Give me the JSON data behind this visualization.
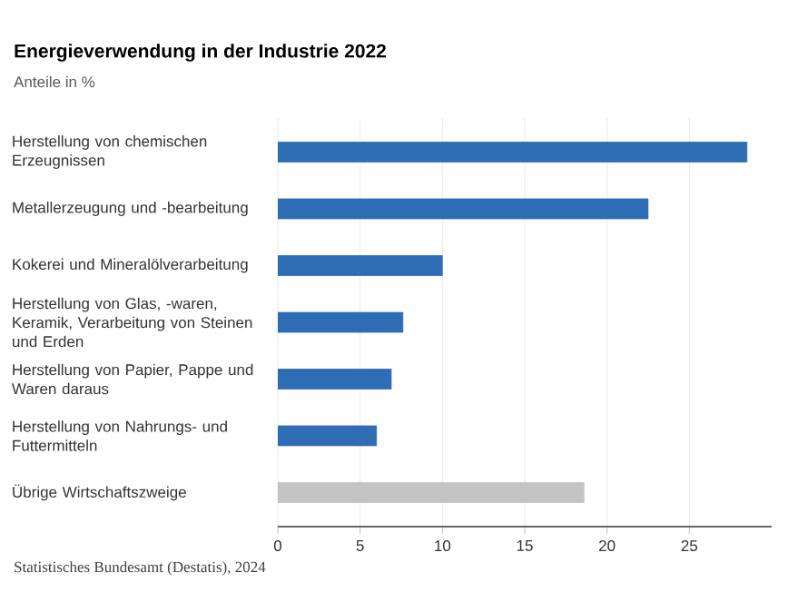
{
  "chart_data": {
    "type": "bar",
    "orientation": "horizontal",
    "title": "Energieverwendung in der Industrie 2022",
    "subtitle": "Anteile in %",
    "categories": [
      "Herstellung von chemischen Erzeugnissen",
      "Metallerzeugung und -bearbeitung",
      "Kokerei und Mineralölverarbeitung",
      "Herstellung von Glas, -waren, Keramik, Verarbeitung von Steinen und Erden",
      "Herstellung von Papier, Pappe und Waren daraus",
      "Herstellung von Nahrungs- und Futtermitteln",
      "Übrige Wirtschaftszweige"
    ],
    "values": [
      28.5,
      22.5,
      10.0,
      7.6,
      6.9,
      6.0,
      18.6
    ],
    "colors": [
      "#2e6db4",
      "#2e6db4",
      "#2e6db4",
      "#2e6db4",
      "#2e6db4",
      "#2e6db4",
      "#c4c4c4"
    ],
    "xlim": [
      0,
      30
    ],
    "xticks": [
      0,
      5,
      10,
      15,
      20,
      25
    ],
    "grid": "x",
    "annotations": [
      "Statistisches Bundesamt (Destatis), 2024"
    ]
  }
}
